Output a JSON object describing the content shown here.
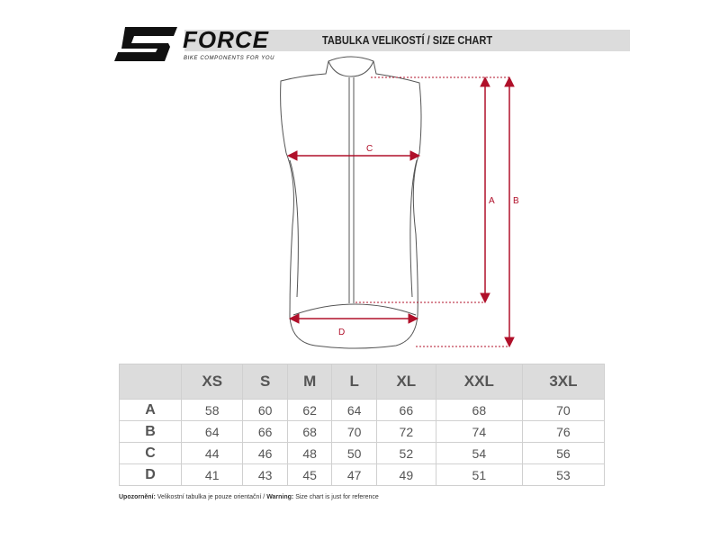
{
  "header": {
    "brand": "FORCE",
    "tagline": "BIKE COMPONENTS FOR YOU",
    "title": "TABULKA VELIKOSTÍ / SIZE CHART"
  },
  "diagram": {
    "labels": {
      "A": "A",
      "B": "B",
      "C": "C",
      "D": "D"
    },
    "arrow_color": "#b0102a"
  },
  "table": {
    "columns": [
      "XS",
      "S",
      "M",
      "L",
      "XL",
      "XXL",
      "3XL"
    ],
    "rows": [
      {
        "label": "A",
        "values": [
          "58",
          "60",
          "62",
          "64",
          "66",
          "68",
          "70"
        ]
      },
      {
        "label": "B",
        "values": [
          "64",
          "66",
          "68",
          "70",
          "72",
          "74",
          "76"
        ]
      },
      {
        "label": "C",
        "values": [
          "44",
          "46",
          "48",
          "50",
          "52",
          "54",
          "56"
        ]
      },
      {
        "label": "D",
        "values": [
          "41",
          "43",
          "45",
          "47",
          "49",
          "51",
          "53"
        ]
      }
    ]
  },
  "note": {
    "cz_label": "Upozornění:",
    "cz_text": " Velikostní tabulka je pouze orientační / ",
    "en_label": "Warning:",
    "en_text": " Size chart is just for reference"
  }
}
